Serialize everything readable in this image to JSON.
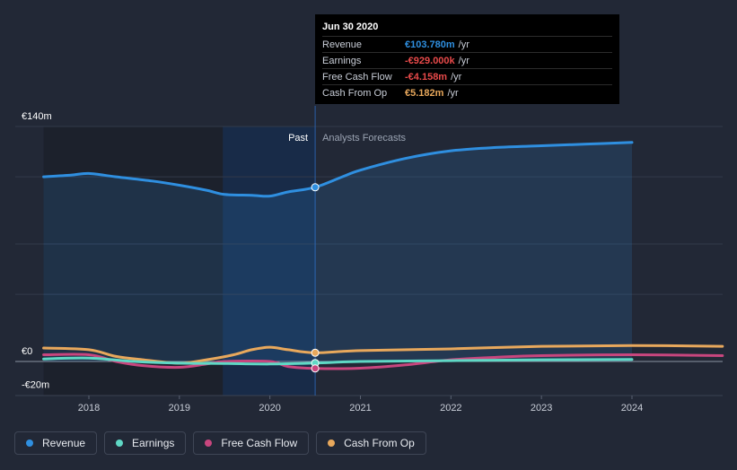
{
  "chart_data": {
    "type": "line",
    "x_ticks": [
      "2018",
      "2019",
      "2020",
      "2021",
      "2022",
      "2023",
      "2024"
    ],
    "y_ticks": [
      "€140m",
      "€0",
      "-€20m"
    ],
    "ylim": [
      -20,
      140
    ],
    "xlim": [
      2017.5,
      2025.0
    ],
    "zones": {
      "past_label": "Past",
      "forecast_label": "Analysts Forecasts",
      "divider_x": 2020.5
    },
    "series": [
      {
        "name": "Revenue",
        "color": "#2f8fe0",
        "points": [
          [
            2017.5,
            110
          ],
          [
            2017.8,
            111
          ],
          [
            2018.0,
            112
          ],
          [
            2018.3,
            110
          ],
          [
            2018.7,
            107.5
          ],
          [
            2019.0,
            105
          ],
          [
            2019.3,
            102
          ],
          [
            2019.5,
            99.5
          ],
          [
            2019.8,
            99
          ],
          [
            2020.0,
            98.5
          ],
          [
            2020.2,
            101
          ],
          [
            2020.5,
            103.78
          ],
          [
            2020.8,
            110
          ],
          [
            2021.0,
            114
          ],
          [
            2021.5,
            121
          ],
          [
            2022.0,
            125.5
          ],
          [
            2022.5,
            127.5
          ],
          [
            2023.0,
            128.5
          ],
          [
            2023.5,
            129.5
          ],
          [
            2024.0,
            130.5
          ]
        ]
      },
      {
        "name": "Earnings",
        "color": "#5fd8c5",
        "points": [
          [
            2017.5,
            1.5
          ],
          [
            2018.0,
            2
          ],
          [
            2018.5,
            0
          ],
          [
            2019.0,
            -1
          ],
          [
            2019.5,
            -1.2
          ],
          [
            2020.0,
            -1.5
          ],
          [
            2020.5,
            -0.929
          ],
          [
            2021.0,
            0
          ],
          [
            2022.0,
            0.5
          ],
          [
            2023.0,
            1
          ],
          [
            2024.0,
            1.2
          ]
        ]
      },
      {
        "name": "Free Cash Flow",
        "color": "#c8467e",
        "points": [
          [
            2017.5,
            4
          ],
          [
            2018.0,
            4
          ],
          [
            2018.3,
            0
          ],
          [
            2018.6,
            -2.5
          ],
          [
            2019.0,
            -3.5
          ],
          [
            2019.3,
            -1.5
          ],
          [
            2019.5,
            0
          ],
          [
            2020.0,
            0
          ],
          [
            2020.2,
            -3
          ],
          [
            2020.5,
            -4.158
          ],
          [
            2021.0,
            -4
          ],
          [
            2021.5,
            -2
          ],
          [
            2022.0,
            1
          ],
          [
            2022.5,
            2.5
          ],
          [
            2023.0,
            3.5
          ],
          [
            2024.0,
            4
          ],
          [
            2025.0,
            3.5
          ]
        ]
      },
      {
        "name": "Cash From Op",
        "color": "#e8a85c",
        "points": [
          [
            2017.5,
            8
          ],
          [
            2018.0,
            7
          ],
          [
            2018.3,
            3
          ],
          [
            2018.6,
            1
          ],
          [
            2019.0,
            -1
          ],
          [
            2019.3,
            1
          ],
          [
            2019.6,
            4
          ],
          [
            2019.8,
            7
          ],
          [
            2020.0,
            8.5
          ],
          [
            2020.2,
            7
          ],
          [
            2020.5,
            5.182
          ],
          [
            2021.0,
            6.5
          ],
          [
            2022.0,
            7.5
          ],
          [
            2023.0,
            9
          ],
          [
            2024.0,
            9.5
          ],
          [
            2025.0,
            9
          ]
        ]
      }
    ],
    "marker_x": 2020.5,
    "legend_position": "bottom-left"
  },
  "tooltip": {
    "title": "Jun 30 2020",
    "rows": [
      {
        "label": "Revenue",
        "value": "€103.780m",
        "unit": "/yr",
        "color": "#2f8fe0"
      },
      {
        "label": "Earnings",
        "value": "-€929.000k",
        "unit": "/yr",
        "color": "#e84a4a"
      },
      {
        "label": "Free Cash Flow",
        "value": "-€4.158m",
        "unit": "/yr",
        "color": "#e84a4a"
      },
      {
        "label": "Cash From Op",
        "value": "€5.182m",
        "unit": "/yr",
        "color": "#e8a85c"
      }
    ]
  },
  "legend": [
    {
      "label": "Revenue",
      "color": "#2f8fe0"
    },
    {
      "label": "Earnings",
      "color": "#5fd8c5"
    },
    {
      "label": "Free Cash Flow",
      "color": "#c8467e"
    },
    {
      "label": "Cash From Op",
      "color": "#e8a85c"
    }
  ]
}
